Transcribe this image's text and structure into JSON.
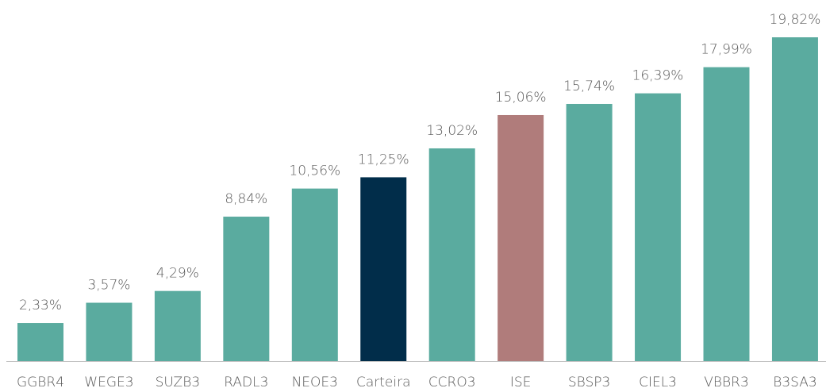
{
  "chart_data": {
    "type": "bar",
    "categories": [
      "GGBR4",
      "WEGE3",
      "SUZB3",
      "RADL3",
      "NEOE3",
      "Carteira",
      "CCRO3",
      "ISE",
      "SBSP3",
      "CIEL3",
      "VBBR3",
      "B3SA3"
    ],
    "values": [
      2.33,
      3.57,
      4.29,
      8.84,
      10.56,
      11.25,
      13.02,
      15.06,
      15.74,
      16.39,
      17.99,
      19.82
    ],
    "value_labels": [
      "2,33%",
      "3,57%",
      "4,29%",
      "8,84%",
      "10,56%",
      "11,25%",
      "13,02%",
      "15,06%",
      "15,74%",
      "16,39%",
      "17,99%",
      "19,82%"
    ],
    "colors": [
      "#5aab9f",
      "#5aab9f",
      "#5aab9f",
      "#5aab9f",
      "#5aab9f",
      "#012d4a",
      "#5aab9f",
      "#b07c7b",
      "#5aab9f",
      "#5aab9f",
      "#5aab9f",
      "#5aab9f"
    ]
  }
}
